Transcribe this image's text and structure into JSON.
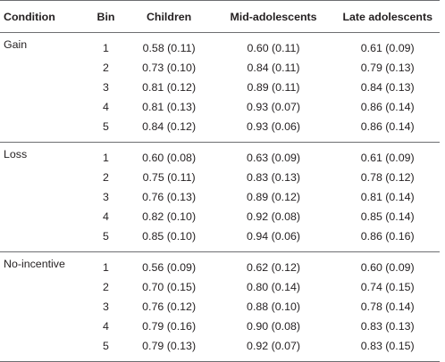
{
  "table": {
    "headers": {
      "condition": "Condition",
      "bin": "Bin",
      "children": "Children",
      "mid": "Mid-adolescents",
      "late": "Late adolescents"
    },
    "groups": [
      {
        "condition": "Gain",
        "rows": [
          {
            "bin": "1",
            "children": "0.58 (0.11)",
            "mid": "0.60 (0.11)",
            "late": "0.61 (0.09)"
          },
          {
            "bin": "2",
            "children": "0.73 (0.10)",
            "mid": "0.84 (0.11)",
            "late": "0.79 (0.13)"
          },
          {
            "bin": "3",
            "children": "0.81 (0.12)",
            "mid": "0.89 (0.11)",
            "late": "0.84 (0.13)"
          },
          {
            "bin": "4",
            "children": "0.81 (0.13)",
            "mid": "0.93 (0.07)",
            "late": "0.86 (0.14)"
          },
          {
            "bin": "5",
            "children": "0.84 (0.12)",
            "mid": "0.93 (0.06)",
            "late": "0.86 (0.14)"
          }
        ]
      },
      {
        "condition": "Loss",
        "rows": [
          {
            "bin": "1",
            "children": "0.60 (0.08)",
            "mid": "0.63 (0.09)",
            "late": "0.61 (0.09)"
          },
          {
            "bin": "2",
            "children": "0.75 (0.11)",
            "mid": "0.83 (0.13)",
            "late": "0.78 (0.12)"
          },
          {
            "bin": "3",
            "children": "0.76 (0.13)",
            "mid": "0.89 (0.12)",
            "late": "0.81 (0.14)"
          },
          {
            "bin": "4",
            "children": "0.82 (0.10)",
            "mid": "0.92 (0.08)",
            "late": "0.85 (0.14)"
          },
          {
            "bin": "5",
            "children": "0.85 (0.10)",
            "mid": "0.94 (0.06)",
            "late": "0.86 (0.16)"
          }
        ]
      },
      {
        "condition": "No-incentive",
        "rows": [
          {
            "bin": "1",
            "children": "0.56 (0.09)",
            "mid": "0.62 (0.12)",
            "late": "0.60 (0.09)"
          },
          {
            "bin": "2",
            "children": "0.70 (0.15)",
            "mid": "0.80 (0.14)",
            "late": "0.74 (0.15)"
          },
          {
            "bin": "3",
            "children": "0.76 (0.12)",
            "mid": "0.88 (0.10)",
            "late": "0.78 (0.14)"
          },
          {
            "bin": "4",
            "children": "0.79 (0.16)",
            "mid": "0.90 (0.08)",
            "late": "0.83 (0.13)"
          },
          {
            "bin": "5",
            "children": "0.79 (0.13)",
            "mid": "0.92 (0.07)",
            "late": "0.83 (0.15)"
          }
        ]
      }
    ]
  }
}
